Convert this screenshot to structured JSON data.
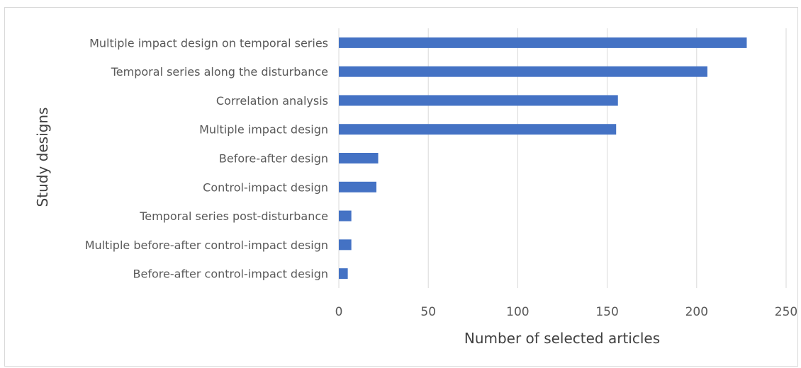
{
  "chart_data": {
    "type": "bar",
    "orientation": "horizontal",
    "title": "",
    "xlabel": "Number of selected articles",
    "ylabel": "Study designs",
    "xlim": [
      0,
      250
    ],
    "xticks": [
      0,
      50,
      100,
      150,
      200,
      250
    ],
    "grid": "vertical",
    "legend": "none",
    "bar_color": "#4472C4",
    "categories": [
      "Multiple impact design on temporal series",
      "Temporal series along the disturbance",
      "Correlation analysis",
      "Multiple impact design",
      "Before-after design",
      "Control-impact design",
      "Temporal series post-disturbance",
      "Multiple before-after control-impact design",
      "Before-after control-impact design"
    ],
    "values": [
      228,
      206,
      156,
      155,
      22,
      21,
      7,
      7,
      5
    ]
  }
}
